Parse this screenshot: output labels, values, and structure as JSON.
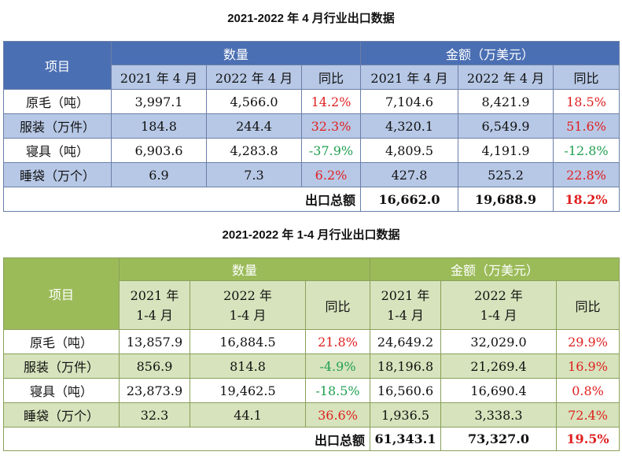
{
  "table1": {
    "title": "2021-2022 年 4 月行业出口数据",
    "item_header": "项目",
    "qty_header": "数量",
    "amount_header": "金额（万美元）",
    "sub_headers": [
      "2021 年 4 月",
      "2022 年 4 月",
      "同比",
      "2021 年 4 月",
      "2022 年 4 月",
      "同比"
    ],
    "rows": [
      {
        "item": "原毛（吨）",
        "q2021": "3,997.1",
        "q2022": "4,566.0",
        "qyoy": "14.2%",
        "a2021": "7,104.6",
        "a2022": "8,421.9",
        "ayoy": "18.5%"
      },
      {
        "item": "服装（万件）",
        "q2021": "184.8",
        "q2022": "244.4",
        "qyoy": "32.3%",
        "a2021": "4,320.1",
        "a2022": "6,549.9",
        "ayoy": "51.6%"
      },
      {
        "item": "寝具（吨）",
        "q2021": "6,903.6",
        "q2022": "4,283.8",
        "qyoy": "-37.9%",
        "a2021": "4,809.5",
        "a2022": "4,191.9",
        "ayoy": "-12.8%"
      },
      {
        "item": "睡袋（万个）",
        "q2021": "6.9",
        "q2022": "7.3",
        "qyoy": "6.2%",
        "a2021": "427.8",
        "a2022": "525.2",
        "ayoy": "22.8%"
      }
    ],
    "total_label": "出口总额",
    "total_2021": "16,662.0",
    "total_2022": "19,688.9",
    "total_yoy": "18.2%"
  },
  "table2": {
    "title": "2021-2022 年 1-4 月行业出口数据",
    "item_header": "项目",
    "qty_header": "数量",
    "amount_header": "金额（万美元）",
    "sub_headers_line1": [
      "2021 年",
      "2022 年",
      "同比",
      "2021 年",
      "2022 年",
      "同比"
    ],
    "sub_headers_line2": [
      "1-4 月",
      "1-4 月",
      "",
      "1-4 月",
      "1-4 月",
      ""
    ],
    "rows": [
      {
        "item": "原毛（吨）",
        "q2021": "13,857.9",
        "q2022": "16,884.5",
        "qyoy": "21.8%",
        "a2021": "24,649.2",
        "a2022": "32,029.0",
        "ayoy": "29.9%"
      },
      {
        "item": "服装（万件）",
        "q2021": "856.9",
        "q2022": "814.8",
        "qyoy": "-4.9%",
        "a2021": "18,196.8",
        "a2022": "21,269.4",
        "ayoy": "16.9%"
      },
      {
        "item": "寝具（吨）",
        "q2021": "23,873.9",
        "q2022": "19,462.5",
        "qyoy": "-18.5%",
        "a2021": "16,560.6",
        "a2022": "16,690.4",
        "ayoy": "0.8%"
      },
      {
        "item": "睡袋（万个）",
        "q2021": "32.3",
        "q2022": "44.1",
        "qyoy": "36.6%",
        "a2021": "1,936.5",
        "a2022": "3,338.3",
        "ayoy": "72.4%"
      }
    ],
    "total_label": "出口总额",
    "total_2021": "61,343.1",
    "total_2022": "73,327.0",
    "total_yoy": "19.5%"
  },
  "colors": {
    "positive": "#e02020",
    "negative": "#20a050",
    "table1_header": "#4b6fb3",
    "table1_band": "#b7c8e6",
    "table2_header": "#9bbb59",
    "table2_band": "#d6e3bc"
  }
}
